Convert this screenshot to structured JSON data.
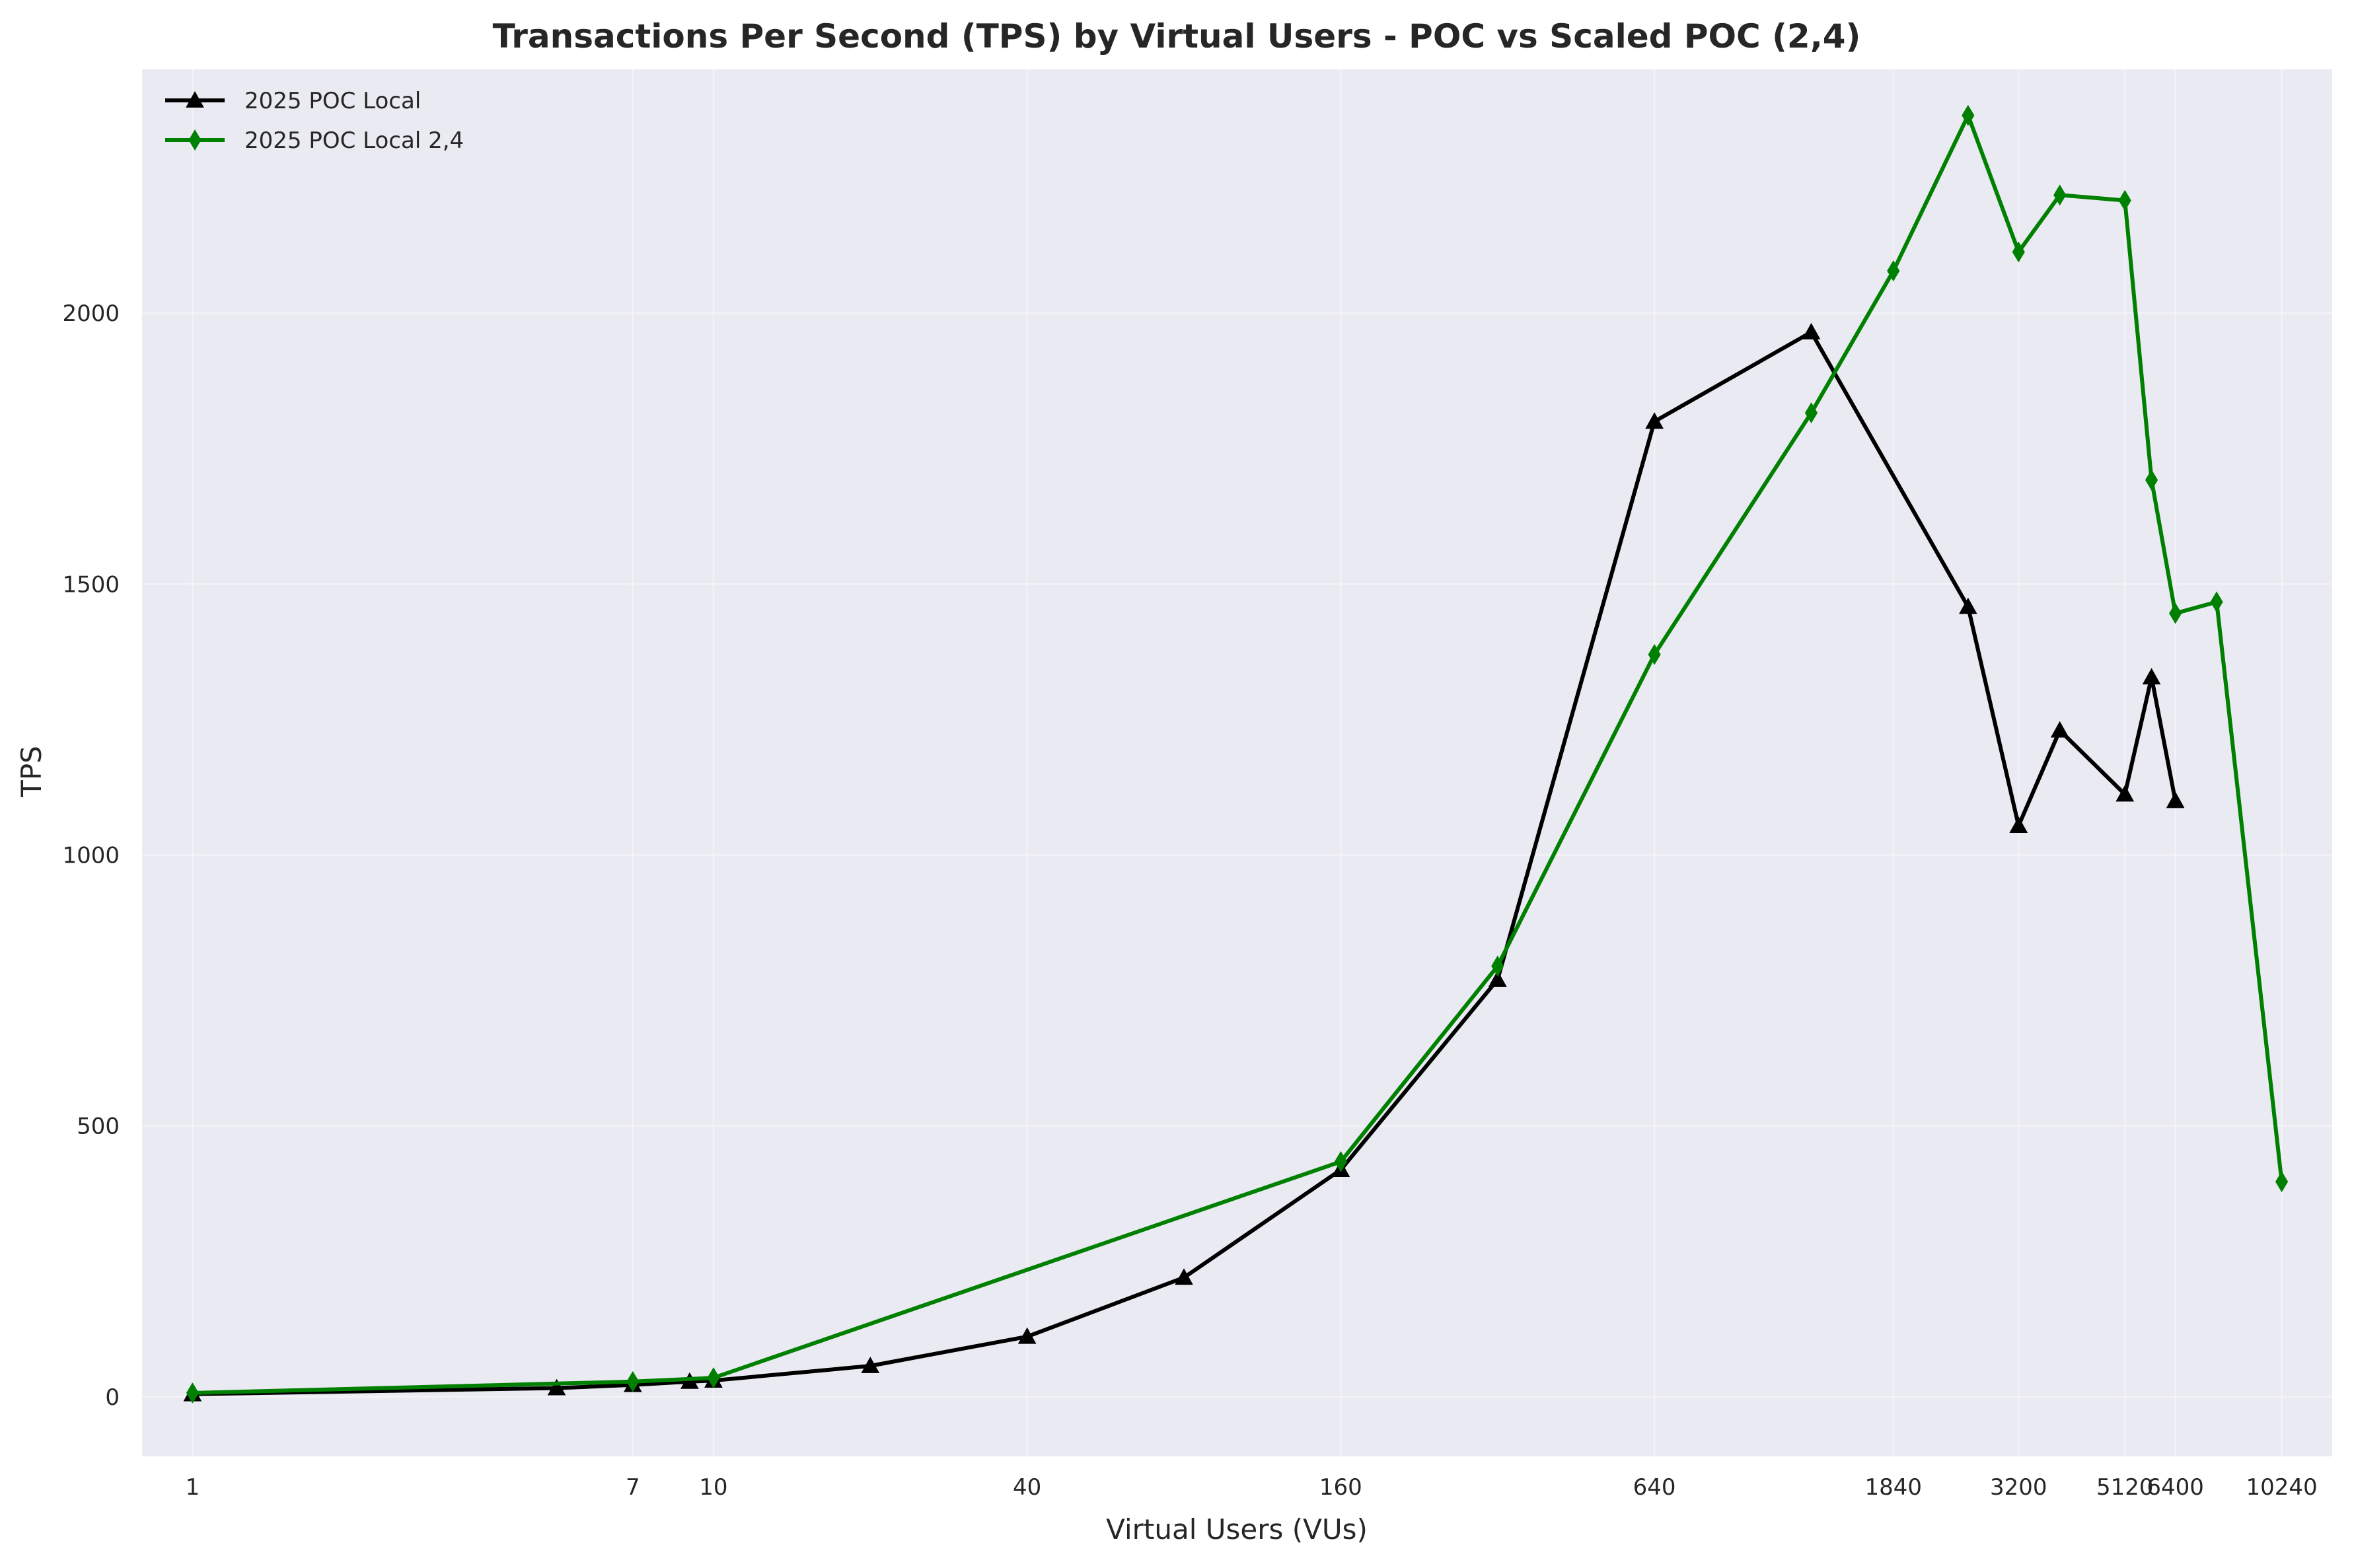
{
  "chart_data": {
    "type": "line",
    "title": "Transactions Per Second (TPS) by Virtual Users - POC vs Scaled POC (2,4)",
    "xlabel": "Virtual Users (VUs)",
    "ylabel": "TPS",
    "x_scale": "log",
    "x_ticks": [
      1,
      7,
      10,
      40,
      160,
      640,
      1840,
      3200,
      5120,
      6400,
      10240
    ],
    "y_ticks": [
      0,
      500,
      1000,
      1500,
      2000
    ],
    "xlim": [
      0.8,
      12800
    ],
    "ylim": [
      -110,
      2450
    ],
    "grid": true,
    "legend_position": "top-left",
    "series": [
      {
        "name": "2025 POC Local",
        "color": "#000000",
        "marker": "triangle",
        "points": [
          {
            "x": 1,
            "y": 5
          },
          {
            "x": 5,
            "y": 16
          },
          {
            "x": 7,
            "y": 22
          },
          {
            "x": 9,
            "y": 28
          },
          {
            "x": 10,
            "y": 30
          },
          {
            "x": 20,
            "y": 57
          },
          {
            "x": 40,
            "y": 111
          },
          {
            "x": 80,
            "y": 220
          },
          {
            "x": 160,
            "y": 419
          },
          {
            "x": 320,
            "y": 770
          },
          {
            "x": 640,
            "y": 1800
          },
          {
            "x": 1280,
            "y": 1965
          },
          {
            "x": 2560,
            "y": 1458
          },
          {
            "x": 3200,
            "y": 1054
          },
          {
            "x": 3840,
            "y": 1230
          },
          {
            "x": 5120,
            "y": 1112
          },
          {
            "x": 5760,
            "y": 1328
          },
          {
            "x": 6400,
            "y": 1100
          }
        ]
      },
      {
        "name": "2025 POC Local 2,4",
        "color": "#008000",
        "marker": "diamond",
        "points": [
          {
            "x": 1,
            "y": 7
          },
          {
            "x": 7,
            "y": 28
          },
          {
            "x": 10,
            "y": 35
          },
          {
            "x": 160,
            "y": 434
          },
          {
            "x": 320,
            "y": 795
          },
          {
            "x": 640,
            "y": 1370
          },
          {
            "x": 1280,
            "y": 1816
          },
          {
            "x": 1840,
            "y": 2078
          },
          {
            "x": 2560,
            "y": 2365
          },
          {
            "x": 3200,
            "y": 2113
          },
          {
            "x": 3840,
            "y": 2218
          },
          {
            "x": 5120,
            "y": 2208
          },
          {
            "x": 5760,
            "y": 1692
          },
          {
            "x": 6400,
            "y": 1446
          },
          {
            "x": 7680,
            "y": 1467
          },
          {
            "x": 10240,
            "y": 397
          }
        ]
      }
    ]
  }
}
